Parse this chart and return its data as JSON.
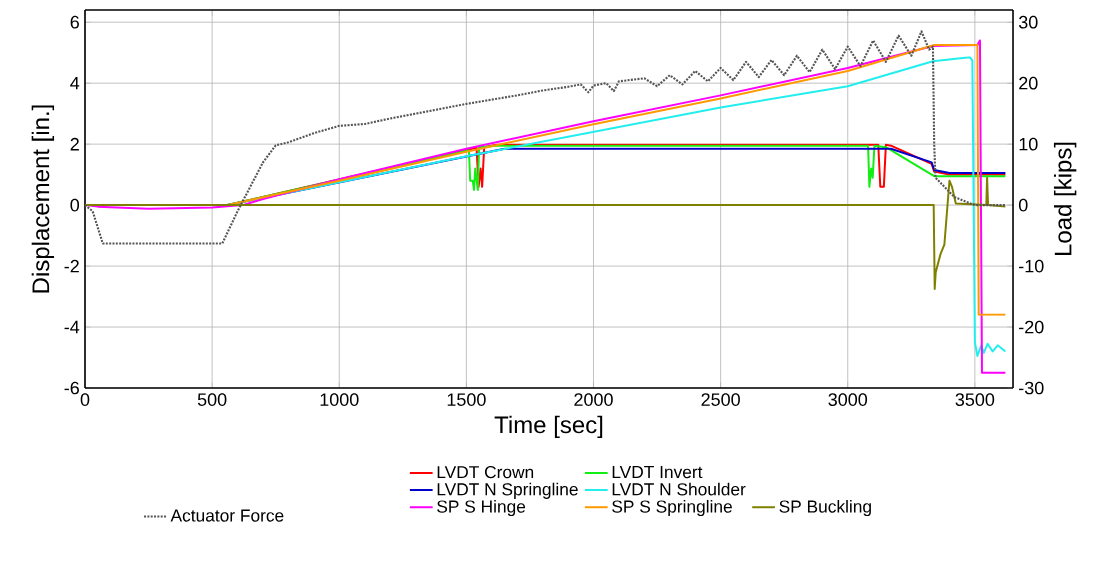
{
  "chart_data": {
    "type": "line",
    "xlabel": "Time [sec]",
    "ylabel": "Displacement [in.]",
    "y2label": "Load [kips]",
    "xlim": [
      0,
      3650
    ],
    "xticks": [
      0,
      500,
      1000,
      1500,
      2000,
      2500,
      3000,
      3500
    ],
    "ylim": [
      -6,
      6.4
    ],
    "yticks": [
      -6,
      -4,
      -2,
      0,
      2,
      4,
      6
    ],
    "y2lim": [
      -30,
      32
    ],
    "y2ticks": [
      -30,
      -20,
      -10,
      0,
      10,
      20,
      30
    ],
    "grid": true,
    "legend": "bottom",
    "series": [
      {
        "name": "Actuator Force",
        "color": "#555555",
        "axis": "y2",
        "line_style": "dotted",
        "x": [
          0,
          30,
          70,
          540,
          600,
          650,
          700,
          750,
          800,
          900,
          1000,
          1100,
          1200,
          1300,
          1400,
          1500,
          1600,
          1700,
          1800,
          1900,
          1950,
          1980,
          2000,
          2050,
          2080,
          2100,
          2200,
          2250,
          2300,
          2350,
          2400,
          2450,
          2500,
          2550,
          2600,
          2650,
          2700,
          2750,
          2800,
          2850,
          2900,
          2950,
          3000,
          3050,
          3100,
          3150,
          3200,
          3250,
          3290,
          3320,
          3335,
          3340,
          3345,
          3420,
          3500,
          3620
        ],
        "values": [
          0,
          -1,
          -6.3,
          -6.3,
          -1,
          3,
          7,
          9.8,
          10.3,
          11.8,
          13,
          13.3,
          14.2,
          15,
          15.8,
          16.6,
          17.3,
          18,
          18.8,
          19.4,
          19.8,
          18.5,
          19.6,
          20,
          18.7,
          20.3,
          20.8,
          19.5,
          21.3,
          19.8,
          22,
          20.3,
          22.5,
          20.5,
          23.5,
          21,
          23.8,
          21.3,
          24.5,
          21.8,
          25.5,
          22.3,
          26,
          22.8,
          27,
          23.5,
          27.8,
          24.5,
          28.5,
          25.5,
          26,
          10,
          4.5,
          1.3,
          0,
          0
        ]
      },
      {
        "name": "LVDT Crown",
        "color": "#ff0000",
        "x": [
          0,
          560,
          1540,
          1548,
          1556,
          1562,
          1570,
          1620,
          3120,
          3128,
          3142,
          3150,
          3170,
          3330,
          3340,
          3400,
          3620
        ],
        "values": [
          0,
          0,
          1.88,
          0.6,
          1.2,
          0.6,
          1.9,
          1.98,
          1.98,
          0.6,
          0.6,
          1.98,
          1.95,
          1.35,
          1.1,
          1.0,
          1.0
        ]
      },
      {
        "name": "LVDT Invert",
        "color": "#11ee11",
        "x": [
          0,
          560,
          1510,
          1515,
          1525,
          1530,
          1535,
          1545,
          1550,
          1620,
          3080,
          3085,
          3092,
          3098,
          3105,
          3150,
          3340,
          3620
        ],
        "values": [
          0,
          0,
          1.8,
          0.8,
          0.8,
          0.5,
          1.2,
          0.5,
          1.9,
          1.95,
          1.95,
          0.6,
          1.2,
          0.9,
          1.95,
          1.9,
          0.95,
          0.95
        ]
      },
      {
        "name": "LVDT N Springline",
        "color": "#0000cc",
        "x": [
          0,
          560,
          1650,
          3170,
          3330,
          3340,
          3400,
          3620
        ],
        "values": [
          0,
          0,
          1.85,
          1.85,
          1.4,
          1.15,
          1.05,
          1.05
        ]
      },
      {
        "name": "LVDT N Shoulder",
        "color": "#22eeee",
        "x": [
          0,
          560,
          1000,
          1500,
          2000,
          2500,
          3000,
          3335,
          3480,
          3490,
          3500,
          3510,
          3525,
          3535,
          3550,
          3570,
          3590,
          3620
        ],
        "values": [
          0,
          0,
          0.75,
          1.6,
          2.4,
          3.2,
          3.9,
          4.72,
          4.85,
          4.75,
          -4.5,
          -4.95,
          -4.6,
          -4.85,
          -4.55,
          -4.8,
          -4.6,
          -4.8
        ]
      },
      {
        "name": "SP S Hinge",
        "color": "#ff00ff",
        "x": [
          0,
          50,
          250,
          500,
          620,
          700,
          1000,
          1500,
          2000,
          2500,
          3000,
          3335,
          3510,
          3520,
          3528,
          3620
        ],
        "values": [
          0,
          -0.05,
          -0.12,
          -0.08,
          0,
          0.2,
          0.85,
          1.85,
          2.75,
          3.6,
          4.5,
          5.22,
          5.25,
          5.4,
          -5.5,
          -5.5
        ]
      },
      {
        "name": "SP S Springline",
        "color": "#ff9900",
        "x": [
          0,
          560,
          1000,
          1500,
          2000,
          2500,
          3000,
          3340,
          3510,
          3515,
          3620
        ],
        "values": [
          0,
          0,
          0.8,
          1.75,
          2.65,
          3.5,
          4.4,
          5.25,
          5.25,
          -3.6,
          -3.6
        ]
      },
      {
        "name": "SP Buckling",
        "color": "#808000",
        "x": [
          0,
          3338,
          3342,
          3346,
          3365,
          3380,
          3400,
          3410,
          3425,
          3545,
          3548,
          3552,
          3620
        ],
        "values": [
          0,
          0,
          -2.75,
          -2.2,
          -1.6,
          -1.3,
          0.8,
          0.6,
          0.05,
          0,
          0.9,
          0,
          -0.05
        ]
      }
    ]
  }
}
